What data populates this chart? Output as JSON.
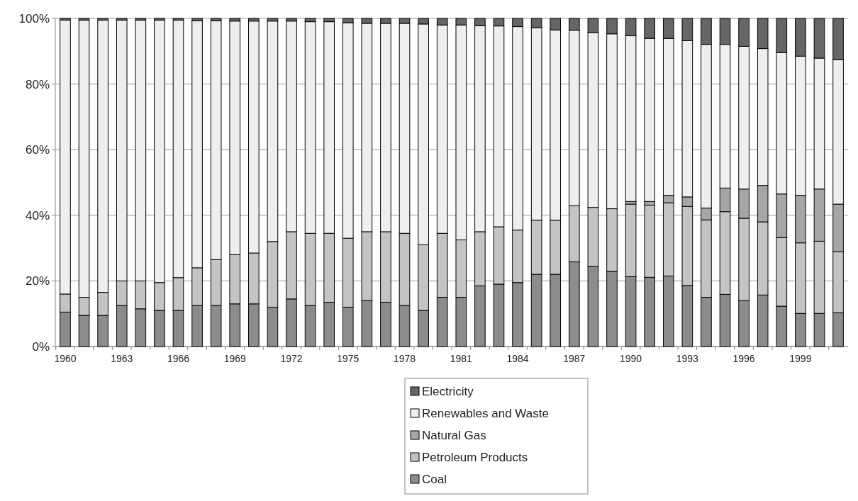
{
  "chart_data": {
    "type": "bar",
    "stacked": true,
    "categories": [
      "1960",
      null,
      null,
      "1963",
      null,
      null,
      "1966",
      null,
      null,
      "1969",
      null,
      null,
      "1972",
      null,
      null,
      "1975",
      null,
      null,
      "1978",
      null,
      null,
      "1981",
      null,
      null,
      "1984",
      null,
      null,
      "1987",
      null,
      null,
      "1990",
      null,
      null,
      "1993",
      null,
      null,
      "1996",
      null,
      null,
      "1999",
      null,
      null
    ],
    "ylim": [
      0,
      100
    ],
    "yticks": [
      {
        "value": 0,
        "label": "0%"
      },
      {
        "value": 20,
        "label": "20%"
      },
      {
        "value": 40,
        "label": "40%"
      },
      {
        "value": 60,
        "label": "60%"
      },
      {
        "value": 80,
        "label": "80%"
      },
      {
        "value": 100,
        "label": "100%"
      }
    ],
    "grid": "y",
    "legend": "bottom",
    "series": [
      {
        "name": "Coal",
        "color": "#8c8c8c",
        "values": [
          10.5,
          9.5,
          9.5,
          12.5,
          11.5,
          11,
          11,
          12.5,
          12.5,
          13,
          13,
          12,
          14.5,
          12.5,
          13.5,
          12,
          14,
          13.5,
          12.5,
          11,
          15,
          15,
          18.5,
          19,
          19.5,
          22,
          22,
          25.8,
          24.4,
          22.9,
          21.3,
          21.1,
          21.5,
          18.6,
          15,
          15.9,
          14,
          15.7,
          12.3,
          10.1,
          10.1,
          10.3
        ]
      },
      {
        "name": "Petroleum Products",
        "color": "#c4c4c4",
        "values": [
          5.5,
          5.5,
          7,
          7.5,
          8.5,
          8.5,
          10,
          11.5,
          14,
          15,
          15.5,
          20,
          20.5,
          22,
          21,
          21,
          21,
          21.5,
          22,
          20,
          19.5,
          17.5,
          16.5,
          17.5,
          16,
          16.5,
          16.5,
          17.1,
          18,
          19.1,
          22.1,
          22,
          22.3,
          24.1,
          23.6,
          25.2,
          25.1,
          22.3,
          20.9,
          21.5,
          22,
          18.6
        ]
      },
      {
        "name": "Natural Gas",
        "color": "#a6a6a6",
        "values": [
          null,
          null,
          null,
          null,
          null,
          null,
          null,
          null,
          null,
          null,
          null,
          null,
          null,
          null,
          null,
          null,
          null,
          null,
          null,
          null,
          null,
          null,
          null,
          null,
          null,
          null,
          null,
          null,
          null,
          null,
          0.8,
          1.1,
          2.3,
          2.9,
          3.6,
          7.2,
          8.9,
          11.1,
          13.3,
          14.5,
          15.9,
          14.5
        ]
      },
      {
        "name": "Renewables and Waste",
        "color": "#eeeeee",
        "values": [
          83.5,
          84.5,
          83,
          79.5,
          79.5,
          80,
          78.5,
          75.3,
          72.8,
          71.2,
          70.7,
          67.2,
          64.2,
          64.5,
          64.5,
          65.7,
          63.5,
          63.5,
          64,
          67.3,
          63.5,
          65.5,
          62.8,
          61.2,
          62,
          58.7,
          58,
          53.5,
          53.3,
          53.3,
          50.5,
          49.7,
          47.8,
          47.6,
          49.9,
          43.8,
          43.5,
          41.7,
          43.1,
          42.4,
          39.9,
          44
        ]
      },
      {
        "name": "Electricity",
        "color": "#666666",
        "values": [
          0.5,
          0.5,
          0.5,
          0.5,
          0.5,
          0.5,
          0.5,
          0.7,
          0.7,
          0.8,
          0.8,
          0.8,
          0.8,
          1,
          1,
          1.3,
          1.5,
          1.5,
          1.5,
          1.7,
          2,
          2,
          2.2,
          2.3,
          2.5,
          2.8,
          3.5,
          3.6,
          4.3,
          4.7,
          5.3,
          6.1,
          6.1,
          6.8,
          7.9,
          7.9,
          8.5,
          9.2,
          10.4,
          11.5,
          12.1,
          12.6
        ]
      }
    ]
  }
}
